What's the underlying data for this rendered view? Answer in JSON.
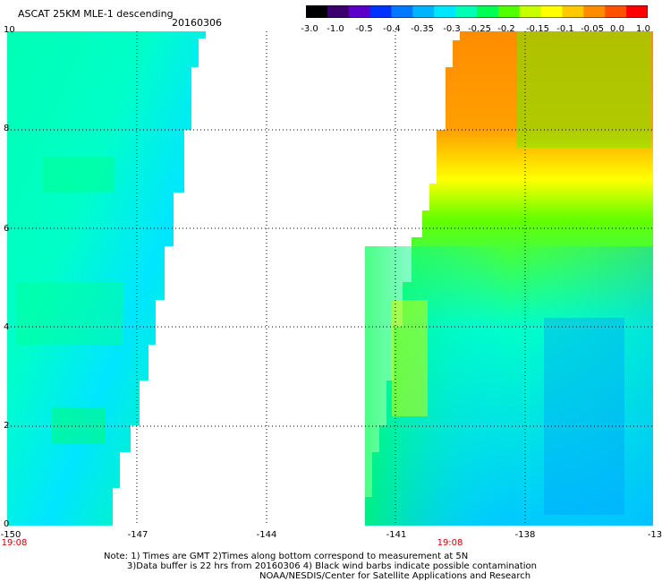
{
  "header": {
    "title": "ASCAT 25KM MLE-1 descending",
    "date": "20160306"
  },
  "colorbar": {
    "labels": [
      "-3.0",
      "-1.0",
      "-0.5",
      "-0.4",
      "-0.35",
      "-0.3",
      "-0.25",
      "-0.2",
      "-0.15",
      "-0.1",
      "-0.05",
      "0.0",
      "1.0"
    ],
    "colors": [
      "#000000",
      "#3a006e",
      "#5a00c8",
      "#0032ff",
      "#0078ff",
      "#00b4ff",
      "#00e6ff",
      "#00ffb4",
      "#00ff50",
      "#50ff00",
      "#c8ff00",
      "#ffff00",
      "#ffc800",
      "#ff8c00",
      "#ff5000",
      "#ff0000"
    ]
  },
  "map": {
    "y_ticks": [
      "0",
      "2",
      "4",
      "6",
      "8",
      "10"
    ],
    "x_ticks": [
      "-150",
      "-147",
      "-144",
      "-141",
      "-138",
      "-13"
    ],
    "times": [
      "19:08",
      "19:08"
    ]
  },
  "notes": {
    "line1": "Note: 1) Times are GMT 2)Times along bottom correspond to measurement at 5N",
    "line2": "3)Data buffer is 22 hrs from 20160306 4) Black wind barbs indicate possible contamination",
    "line3": "NOAA/NESDIS/Center for Satellite Applications and Research"
  }
}
